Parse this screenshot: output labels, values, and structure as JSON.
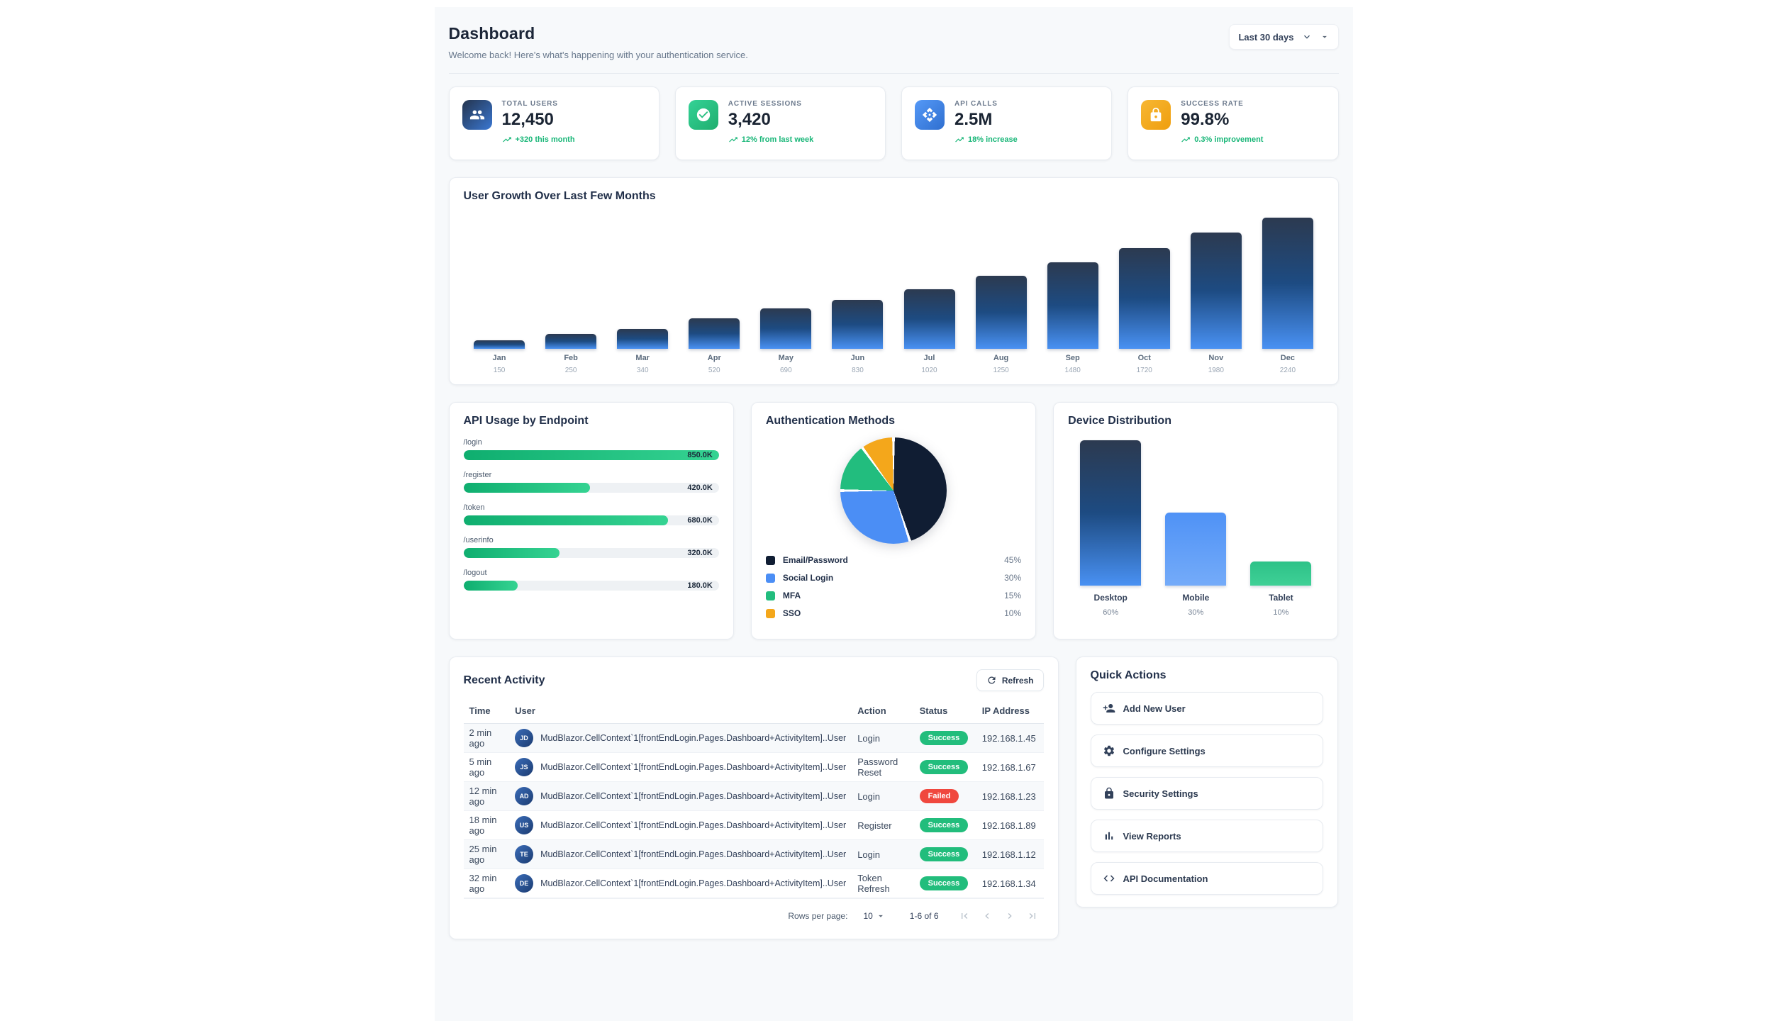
{
  "header": {
    "title": "Dashboard",
    "subtitle": "Welcome back! Here's what's happening with your authentication service.",
    "range_label": "Last 30 days"
  },
  "stat_cards": [
    {
      "icon": "people",
      "icon_from": "#24344d",
      "icon_to": "#3a77d2",
      "label": "TOTAL USERS",
      "value": "12,450",
      "trend": "+320 this month"
    },
    {
      "icon": "check-circle",
      "icon_from": "#34d296",
      "icon_to": "#1fae6e",
      "label": "ACTIVE SESSIONS",
      "value": "3,420",
      "trend": "12% from last week"
    },
    {
      "icon": "api",
      "icon_from": "#5599f7",
      "icon_to": "#2f6fd0",
      "label": "API CALLS",
      "value": "2.5M",
      "trend": "18% increase"
    },
    {
      "icon": "lock",
      "icon_from": "#f7b733",
      "icon_to": "#ef9e0e",
      "label": "SUCCESS RATE",
      "value": "99.8%",
      "trend": "0.3% improvement"
    }
  ],
  "chart_data": [
    {
      "type": "bar",
      "title": "User Growth Over Last Few Months",
      "categories": [
        "Jan",
        "Feb",
        "Mar",
        "Apr",
        "May",
        "Jun",
        "Jul",
        "Aug",
        "Sep",
        "Oct",
        "Nov",
        "Dec"
      ],
      "values": [
        150,
        250,
        340,
        520,
        690,
        830,
        1020,
        1250,
        1480,
        1720,
        1980,
        2240
      ],
      "ylim": [
        0,
        2240
      ],
      "bar_color_top": "#2c3a50",
      "bar_color_bottom": "#4991f3"
    },
    {
      "type": "bar",
      "title": "API Usage by Endpoint",
      "orientation": "horizontal",
      "categories": [
        "/login",
        "/register",
        "/token",
        "/userinfo",
        "/logout"
      ],
      "values": [
        850000,
        420000,
        680000,
        320000,
        180000
      ],
      "value_labels": [
        "850.0K",
        "420.0K",
        "680.0K",
        "320.0K",
        "180.0K"
      ],
      "xlim": [
        0,
        850000
      ],
      "bar_color_from": "#0fae6f",
      "bar_color_to": "#35d392"
    },
    {
      "type": "pie",
      "title": "Authentication Methods",
      "slices": [
        {
          "label": "Email/Password",
          "pct": 45,
          "pct_label": "45%",
          "color": "#101d33"
        },
        {
          "label": "Social Login",
          "pct": 30,
          "pct_label": "30%",
          "color": "#4b8ef5"
        },
        {
          "label": "MFA",
          "pct": 15,
          "pct_label": "15%",
          "color": "#22bd7e"
        },
        {
          "label": "SSO",
          "pct": 10,
          "pct_label": "10%",
          "color": "#f4a71b"
        }
      ],
      "legend_position": "bottom"
    },
    {
      "type": "bar",
      "title": "Device Distribution",
      "categories": [
        "Desktop",
        "Mobile",
        "Tablet"
      ],
      "values": [
        60,
        30,
        10
      ],
      "value_labels": [
        "60%",
        "30%",
        "10%"
      ],
      "ylim": [
        0,
        60
      ],
      "bar_colors": [
        {
          "from": "#2c3a50",
          "to": "#4991f3"
        },
        {
          "from": "#4f92f6",
          "to": "#74abf9"
        },
        {
          "from": "#2dc288",
          "to": "#3fd096"
        }
      ]
    }
  ],
  "recent_activity": {
    "title": "Recent Activity",
    "refresh_label": "Refresh",
    "columns": [
      "Time",
      "User",
      "Action",
      "Status",
      "IP Address"
    ],
    "rows": [
      {
        "time": "2 min ago",
        "initials": "JD",
        "user": "MudBlazor.CellContext`1[frontEndLogin.Pages.Dashboard+ActivityItem]..User",
        "action": "Login",
        "status": "Success",
        "ip": "192.168.1.45"
      },
      {
        "time": "5 min ago",
        "initials": "JS",
        "user": "MudBlazor.CellContext`1[frontEndLogin.Pages.Dashboard+ActivityItem]..User",
        "action": "Password Reset",
        "status": "Success",
        "ip": "192.168.1.67"
      },
      {
        "time": "12 min ago",
        "initials": "AD",
        "user": "MudBlazor.CellContext`1[frontEndLogin.Pages.Dashboard+ActivityItem]..User",
        "action": "Login",
        "status": "Failed",
        "ip": "192.168.1.23"
      },
      {
        "time": "18 min ago",
        "initials": "US",
        "user": "MudBlazor.CellContext`1[frontEndLogin.Pages.Dashboard+ActivityItem]..User",
        "action": "Register",
        "status": "Success",
        "ip": "192.168.1.89"
      },
      {
        "time": "25 min ago",
        "initials": "TE",
        "user": "MudBlazor.CellContext`1[frontEndLogin.Pages.Dashboard+ActivityItem]..User",
        "action": "Login",
        "status": "Success",
        "ip": "192.168.1.12"
      },
      {
        "time": "32 min ago",
        "initials": "DE",
        "user": "MudBlazor.CellContext`1[frontEndLogin.Pages.Dashboard+ActivityItem]..User",
        "action": "Token Refresh",
        "status": "Success",
        "ip": "192.168.1.34"
      }
    ],
    "status_colors": {
      "Success": "#22bd7c",
      "Failed": "#f0483e"
    },
    "pagination": {
      "rows_per_page_label": "Rows per page:",
      "rows_per_page": "10",
      "range": "1-6 of 6"
    }
  },
  "quick_actions": {
    "title": "Quick Actions",
    "items": [
      {
        "icon": "person-add",
        "label": "Add New User"
      },
      {
        "icon": "settings",
        "label": "Configure Settings"
      },
      {
        "icon": "lock",
        "label": "Security Settings"
      },
      {
        "icon": "bar-chart",
        "label": "View Reports"
      },
      {
        "icon": "code",
        "label": "API Documentation"
      }
    ]
  },
  "colors": {
    "accent_green": "#17b677",
    "accent_blue": "#4b8ef5",
    "navy": "#101d33",
    "amber": "#f4a71b",
    "container_bg": "#f7f9fb"
  }
}
